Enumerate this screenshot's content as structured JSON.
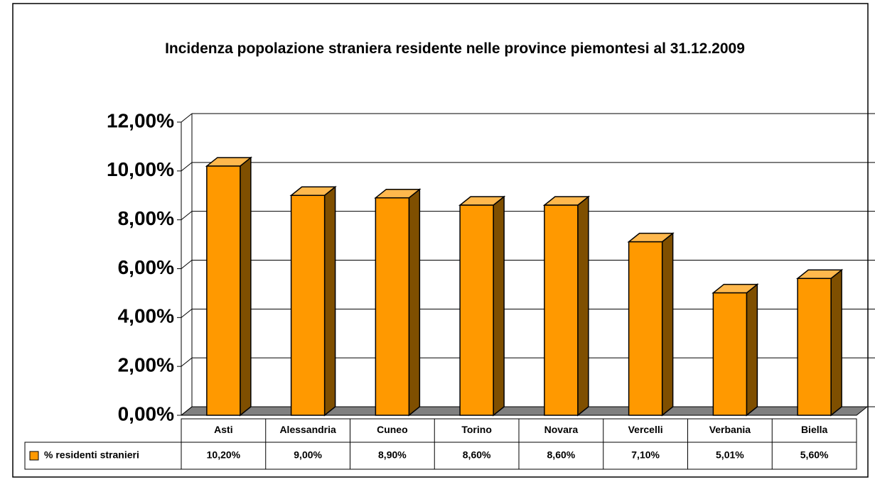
{
  "chart_data": {
    "type": "bar3d",
    "title": "Incidenza popolazione straniera residente nelle province piemontesi al 31.12.2009",
    "categories": [
      "Asti",
      "Alessandria",
      "Cuneo",
      "Torino",
      "Novara",
      "Vercelli",
      "Verbania",
      "Biella"
    ],
    "series": [
      {
        "name": "% residenti stranieri",
        "color": "#ff9900",
        "values": [
          10.2,
          9.0,
          8.9,
          8.6,
          8.6,
          7.1,
          5.01,
          5.6
        ],
        "value_labels": [
          "10,20%",
          "9,00%",
          "8,90%",
          "8,60%",
          "8,60%",
          "7,10%",
          "5,01%",
          "5,60%"
        ]
      }
    ],
    "ylim": [
      0,
      12
    ],
    "yticks": [
      {
        "value": 0,
        "label": "0,00%"
      },
      {
        "value": 2,
        "label": "2,00%"
      },
      {
        "value": 4,
        "label": "4,00%"
      },
      {
        "value": 6,
        "label": "6,00%"
      },
      {
        "value": 8,
        "label": "8,00%"
      },
      {
        "value": 10,
        "label": "10,00%"
      },
      {
        "value": 12,
        "label": "12,00%"
      }
    ],
    "grid": true
  }
}
